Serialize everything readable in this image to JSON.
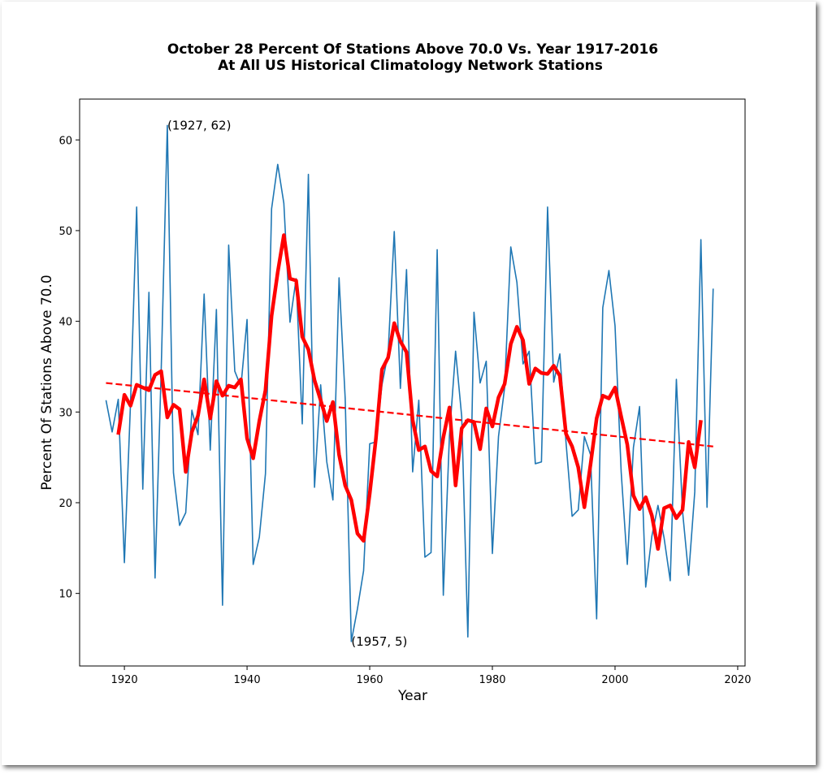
{
  "chart_data": {
    "type": "line",
    "title": [
      "October 28 Percent Of Stations Above 70.0 Vs. Year 1917-2016",
      "At All US Historical Climatology Network Stations"
    ],
    "x_label": "Year",
    "y_label": "Percent Of Stations Above 70.0",
    "x": [
      1917,
      1918,
      1919,
      1920,
      1921,
      1922,
      1923,
      1924,
      1925,
      1926,
      1927,
      1928,
      1929,
      1930,
      1931,
      1932,
      1933,
      1934,
      1935,
      1936,
      1937,
      1938,
      1939,
      1940,
      1941,
      1942,
      1943,
      1944,
      1945,
      1946,
      1947,
      1948,
      1949,
      1950,
      1951,
      1952,
      1953,
      1954,
      1955,
      1956,
      1957,
      1958,
      1959,
      1960,
      1961,
      1962,
      1963,
      1964,
      1965,
      1966,
      1967,
      1968,
      1969,
      1970,
      1971,
      1972,
      1973,
      1974,
      1975,
      1976,
      1977,
      1978,
      1979,
      1980,
      1981,
      1982,
      1983,
      1984,
      1985,
      1986,
      1987,
      1988,
      1989,
      1990,
      1991,
      1992,
      1993,
      1994,
      1995,
      1996,
      1997,
      1998,
      1999,
      2000,
      2001,
      2002,
      2003,
      2004,
      2005,
      2006,
      2007,
      2008,
      2009,
      2010,
      2011,
      2012,
      2013,
      2014,
      2015,
      2016
    ],
    "series": [
      {
        "color": "#1f77b4",
        "width": 1.6,
        "values": [
          31.3,
          27.8,
          31.4,
          13.4,
          31,
          52.6,
          21.5,
          43.2,
          11.7,
          34.6,
          61.6,
          23.3,
          17.5,
          18.9,
          30.2,
          27.5,
          43,
          25.8,
          41.3,
          8.7,
          48.4,
          34.5,
          32.8,
          40.2,
          13.2,
          16.2,
          23.2,
          52.4,
          57.3,
          53,
          39.9,
          44.7,
          28.7,
          56.2,
          21.7,
          33,
          24.5,
          20.3,
          44.8,
          31.5,
          4.7,
          8.3,
          12.5,
          26.5,
          26.7,
          33,
          36.5,
          49.9,
          32.6,
          45.7,
          23.4,
          31.3,
          14,
          14.5,
          47.9,
          9.8,
          27.4,
          36.7,
          29.5,
          5.2,
          41,
          33.2,
          35.6,
          14.4,
          27.3,
          32.7,
          48.2,
          44.3,
          35.3,
          36.7,
          24.3,
          24.5,
          52.6,
          33.3,
          36.4,
          26.7,
          18.5,
          19.2,
          27.3,
          25.3,
          7.2,
          41.5,
          45.6,
          39.5,
          23.4,
          13.2,
          26.1,
          30.6,
          10.7,
          16.3,
          19.7,
          16.1,
          11.4,
          33.6,
          19.1,
          12,
          21.2,
          49,
          19.5,
          43.6
        ]
      },
      {
        "color": "#ff0000",
        "width": 4.5,
        "values": [
          null,
          null,
          27.5,
          31.9,
          30.7,
          33,
          32.7,
          32.4,
          34.1,
          34.5,
          29.4,
          30.8,
          30.3,
          23.4,
          27.8,
          29.6,
          33.6,
          29.3,
          33.4,
          31.8,
          32.9,
          32.7,
          33.6,
          27.1,
          24.9,
          29,
          32.4,
          40.6,
          45.4,
          49.5,
          44.7,
          44.5,
          38.3,
          36.9,
          33.5,
          31.3,
          29,
          31.1,
          25.3,
          21.9,
          20.3,
          16.6,
          15.8,
          21,
          27,
          34.7,
          36,
          39.8,
          37.8,
          36.6,
          29.1,
          25.8,
          26.2,
          23.5,
          22.9,
          27.2,
          30.5,
          21.9,
          28.2,
          29.1,
          28.9,
          25.9,
          30.4,
          28.4,
          31.6,
          33.1,
          37.5,
          39.4,
          37.9,
          33.1,
          34.8,
          34.3,
          34.2,
          35.1,
          34,
          27.6,
          26.2,
          23.9,
          19.5,
          24.2,
          29.3,
          31.8,
          31.5,
          32.7,
          29.5,
          26.4,
          20.8,
          19.3,
          20.6,
          18.6,
          14.9,
          19.4,
          19.7,
          18.3,
          19.2,
          26.7,
          23.9,
          29.1,
          null,
          null
        ]
      },
      {
        "color": "#ff0000",
        "width": 2.2,
        "dashed": true,
        "x": [
          1917,
          2016
        ],
        "values": [
          33.2,
          26.2
        ]
      }
    ],
    "annotations": [
      {
        "text": "(1927, 62)",
        "x": 1927,
        "y": 61.6
      },
      {
        "text": "(1957, 5)",
        "x": 1957,
        "y": 4.7
      }
    ],
    "xlim": [
      1912.7,
      2021.2
    ],
    "ylim": [
      2.0,
      64.5
    ],
    "xticks": [
      1920,
      1940,
      1960,
      1980,
      2000,
      2020
    ],
    "yticks": [
      10,
      20,
      30,
      40,
      50,
      60
    ],
    "grid": false
  }
}
